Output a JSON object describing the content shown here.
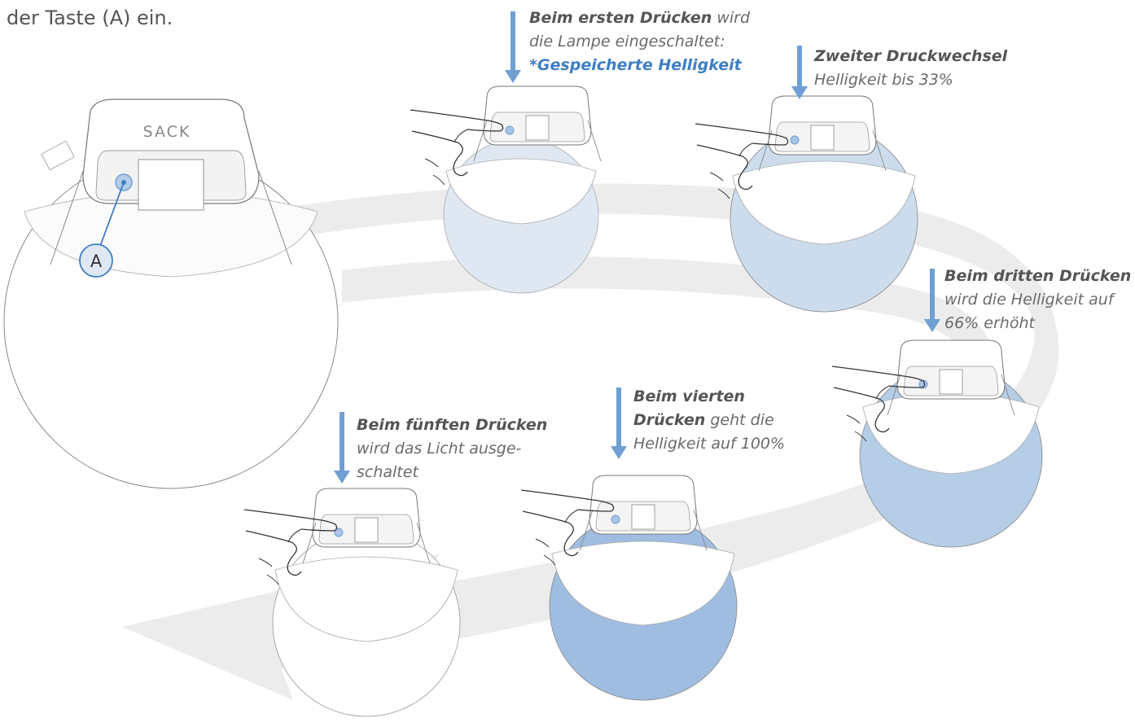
{
  "intro_text": "der Taste (A) ein.",
  "brand_label": "SACK",
  "button_marker_label": "A",
  "steps": [
    {
      "bold": "Beim ersten Drücken",
      "rest": " wird",
      "line2": "die Lampe eingeschaltet:",
      "line3": "*Gespeicherte Helligkeit"
    },
    {
      "bold": "Zweiter Druckwechsel",
      "line2": "Helligkeit bis 33%"
    },
    {
      "bold": "Beim dritten Drücken",
      "line2": "wird die Helligkeit auf",
      "line3": "66% erhöht"
    },
    {
      "bold1": "Beim vierten",
      "bold2": "Drücken",
      "rest2": " geht die",
      "line3": "Helligkeit auf 100%"
    },
    {
      "bold": "Beim fünften Drücken",
      "line2": "wird das Licht ausge-",
      "line3": "schaltet"
    }
  ],
  "colors": {
    "arrow": "#6f9fd3",
    "accent_text": "#3f7ec4",
    "cycle_band": "#ececec",
    "lamp_off": "#ffffff",
    "lamp_step1": "#dfe8f2",
    "lamp_step2": "#ccdcec",
    "lamp_step3": "#b5cde6",
    "lamp_step4": "#9fbde0"
  }
}
